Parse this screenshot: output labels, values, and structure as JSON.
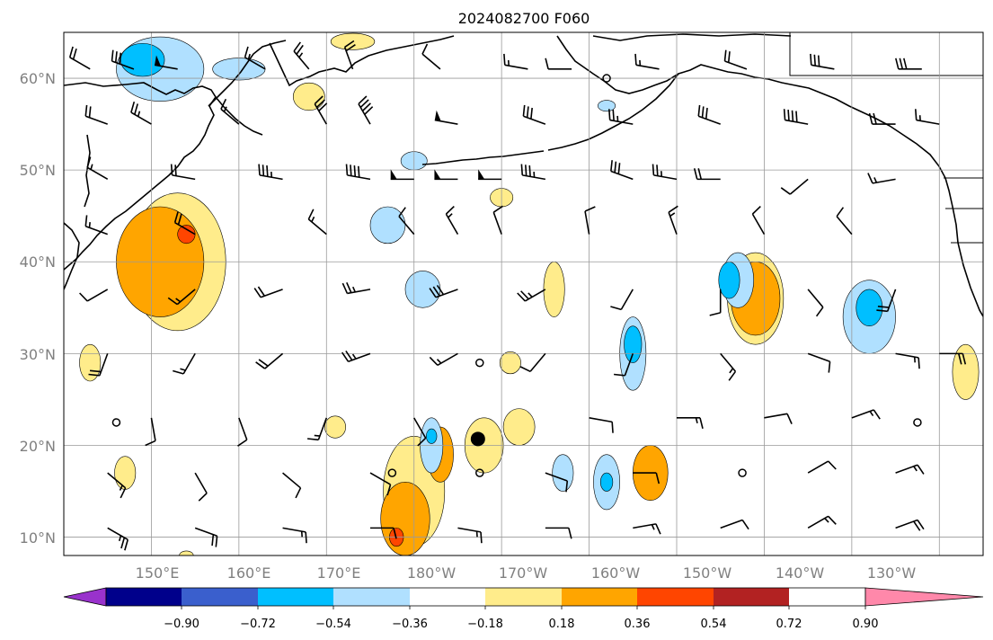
{
  "title": "2024082700 F060",
  "map": {
    "lon_labels": [
      "150°E",
      "160°E",
      "170°E",
      "180°W",
      "170°W",
      "160°W",
      "150°W",
      "140°W",
      "130°W"
    ],
    "lat_labels": [
      "10°N",
      "20°N",
      "30°N",
      "40°N",
      "50°N",
      "60°N"
    ],
    "lon_range": [
      140,
      245
    ],
    "lat_range": [
      8,
      65
    ],
    "gridlines": true
  },
  "colorbar": {
    "tick_labels": [
      "−0.90",
      "−0.72",
      "−0.54",
      "−0.36",
      "−0.18",
      "0.18",
      "0.36",
      "0.54",
      "0.72",
      "0.90"
    ],
    "levels": [
      -0.9,
      -0.72,
      -0.54,
      -0.36,
      -0.18,
      0.18,
      0.36,
      0.54,
      0.72,
      0.9
    ],
    "colors": [
      "#9932cc",
      "#00008b",
      "#3a5fcd",
      "#00bfff",
      "#b0e0ff",
      "#ffffff",
      "#ffec8b",
      "#ffa500",
      "#ff4500",
      "#b22222",
      "#ff88aa"
    ]
  },
  "fields": {
    "positive": [
      {
        "level": 0.18,
        "color": "#ffec8b",
        "regions": [
          {
            "c": [
              153,
              40
            ],
            "r": [
              5.5,
              7.5
            ]
          },
          {
            "c": [
              180,
              15
            ],
            "r": [
              3.5,
              6
            ]
          },
          {
            "c": [
              188,
              20
            ],
            "r": [
              2.2,
              3
            ]
          },
          {
            "c": [
              219,
              36
            ],
            "r": [
              3.2,
              5
            ]
          },
          {
            "c": [
              196,
              37
            ],
            "r": [
              1.2,
              3
            ]
          },
          {
            "c": [
              243,
              28
            ],
            "r": [
              1.5,
              3
            ]
          },
          {
            "c": [
              143,
              29
            ],
            "r": [
              1.2,
              2
            ]
          },
          {
            "c": [
              168,
              58
            ],
            "r": [
              1.8,
              1.5
            ]
          },
          {
            "c": [
              171,
              22
            ],
            "r": [
              1.2,
              1.2
            ]
          },
          {
            "c": [
              147,
              17
            ],
            "r": [
              1.2,
              1.8
            ]
          },
          {
            "c": [
              192,
              22
            ],
            "r": [
              1.8,
              2
            ]
          },
          {
            "c": [
              191,
              29
            ],
            "r": [
              1.2,
              1.2
            ]
          },
          {
            "c": [
              173,
              64
            ],
            "r": [
              2.5,
              0.9
            ]
          },
          {
            "c": [
              190,
              47
            ],
            "r": [
              1.3,
              1
            ]
          },
          {
            "c": [
              154,
              8
            ],
            "r": [
              0.8,
              0.5
            ]
          }
        ]
      },
      {
        "level": 0.36,
        "color": "#ffa500",
        "regions": [
          {
            "c": [
              151,
              40
            ],
            "r": [
              5,
              6
            ]
          },
          {
            "c": [
              179,
              12
            ],
            "r": [
              2.8,
              4
            ]
          },
          {
            "c": [
              183,
              19
            ],
            "r": [
              1.5,
              3
            ]
          },
          {
            "c": [
              219,
              36
            ],
            "r": [
              2.8,
              4
            ]
          },
          {
            "c": [
              207,
              17
            ],
            "r": [
              2,
              3
            ]
          }
        ]
      },
      {
        "level": 0.54,
        "color": "#ff4500",
        "regions": [
          {
            "c": [
              154,
              43
            ],
            "r": [
              1,
              1
            ]
          },
          {
            "c": [
              178,
              10
            ],
            "r": [
              0.8,
              1
            ]
          }
        ]
      }
    ],
    "negative": [
      {
        "level": -0.18,
        "color": "#b0e0ff",
        "regions": [
          {
            "c": [
              151,
              61
            ],
            "r": [
              5,
              3.5
            ]
          },
          {
            "c": [
              177,
              44
            ],
            "r": [
              2,
              2
            ]
          },
          {
            "c": [
              181,
              37
            ],
            "r": [
              2,
              2
            ]
          },
          {
            "c": [
              182,
              20
            ],
            "r": [
              1.3,
              3
            ]
          },
          {
            "c": [
              217,
              38
            ],
            "r": [
              1.8,
              3
            ]
          },
          {
            "c": [
              205,
              30
            ],
            "r": [
              1.5,
              4
            ]
          },
          {
            "c": [
              197,
              17
            ],
            "r": [
              1.2,
              2
            ]
          },
          {
            "c": [
              202,
              16
            ],
            "r": [
              1.5,
              3
            ]
          },
          {
            "c": [
              232,
              34
            ],
            "r": [
              3,
              4
            ]
          },
          {
            "c": [
              160,
              61
            ],
            "r": [
              3,
              1.2
            ]
          },
          {
            "c": [
              180,
              51
            ],
            "r": [
              1.5,
              1
            ]
          },
          {
            "c": [
              202,
              57
            ],
            "r": [
              1,
              0.6
            ]
          }
        ]
      },
      {
        "level": -0.36,
        "color": "#00bfff",
        "regions": [
          {
            "c": [
              149,
              62
            ],
            "r": [
              2.5,
              1.8
            ]
          },
          {
            "c": [
              216,
              38
            ],
            "r": [
              1.2,
              2
            ]
          },
          {
            "c": [
              205,
              31
            ],
            "r": [
              1,
              2
            ]
          },
          {
            "c": [
              232,
              35
            ],
            "r": [
              1.5,
              2
            ]
          },
          {
            "c": [
              202,
              16
            ],
            "r": [
              0.7,
              1
            ]
          },
          {
            "c": [
              182,
              21
            ],
            "r": [
              0.6,
              0.8
            ]
          }
        ]
      }
    ]
  },
  "markers": [
    {
      "lon": 187.3,
      "lat": 20.7,
      "kind": "large-dot"
    },
    {
      "lon": 146,
      "lat": 22.5,
      "kind": "calm-circle"
    },
    {
      "lon": 187.5,
      "lat": 29,
      "kind": "calm-circle"
    },
    {
      "lon": 177.5,
      "lat": 17,
      "kind": "calm-circle"
    },
    {
      "lon": 187.5,
      "lat": 17,
      "kind": "calm-circle"
    },
    {
      "lon": 217.5,
      "lat": 17,
      "kind": "calm-circle"
    },
    {
      "lon": 237.5,
      "lat": 22.5,
      "kind": "calm-circle"
    },
    {
      "lon": 202,
      "lat": 60,
      "kind": "calm-circle"
    }
  ],
  "barbs": [
    {
      "lon": 143,
      "lat": 61,
      "dir": 300,
      "spd": 20
    },
    {
      "lon": 148,
      "lat": 61,
      "dir": 290,
      "spd": 30
    },
    {
      "lon": 153,
      "lat": 61,
      "dir": 280,
      "spd": 50
    },
    {
      "lon": 163,
      "lat": 61,
      "dir": 300,
      "spd": 15
    },
    {
      "lon": 168,
      "lat": 61,
      "dir": 320,
      "spd": 25
    },
    {
      "lon": 173,
      "lat": 61,
      "dir": 340,
      "spd": 20
    },
    {
      "lon": 183,
      "lat": 61,
      "dir": 310,
      "spd": 10
    },
    {
      "lon": 193,
      "lat": 61,
      "dir": 280,
      "spd": 15
    },
    {
      "lon": 198,
      "lat": 61,
      "dir": 270,
      "spd": 10
    },
    {
      "lon": 208,
      "lat": 61,
      "dir": 280,
      "spd": 15
    },
    {
      "lon": 218,
      "lat": 61,
      "dir": 290,
      "spd": 20
    },
    {
      "lon": 228,
      "lat": 61,
      "dir": 280,
      "spd": 30
    },
    {
      "lon": 238,
      "lat": 61,
      "dir": 270,
      "spd": 30
    },
    {
      "lon": 145,
      "lat": 55,
      "dir": 290,
      "spd": 20
    },
    {
      "lon": 150,
      "lat": 55,
      "dir": 300,
      "spd": 25
    },
    {
      "lon": 160,
      "lat": 55,
      "dir": 310,
      "spd": 15
    },
    {
      "lon": 170,
      "lat": 55,
      "dir": 330,
      "spd": 30
    },
    {
      "lon": 175,
      "lat": 55,
      "dir": 330,
      "spd": 40
    },
    {
      "lon": 185,
      "lat": 55,
      "dir": 280,
      "spd": 50
    },
    {
      "lon": 195,
      "lat": 55,
      "dir": 290,
      "spd": 30
    },
    {
      "lon": 205,
      "lat": 55,
      "dir": 280,
      "spd": 25
    },
    {
      "lon": 215,
      "lat": 55,
      "dir": 290,
      "spd": 30
    },
    {
      "lon": 225,
      "lat": 55,
      "dir": 280,
      "spd": 40
    },
    {
      "lon": 235,
      "lat": 55,
      "dir": 270,
      "spd": 20
    },
    {
      "lon": 240,
      "lat": 55,
      "dir": 280,
      "spd": 15
    },
    {
      "lon": 145,
      "lat": 49,
      "dir": 300,
      "spd": 15
    },
    {
      "lon": 155,
      "lat": 49,
      "dir": 280,
      "spd": 20
    },
    {
      "lon": 165,
      "lat": 49,
      "dir": 280,
      "spd": 35
    },
    {
      "lon": 175,
      "lat": 49,
      "dir": 280,
      "spd": 40
    },
    {
      "lon": 180,
      "lat": 49,
      "dir": 270,
      "spd": 50
    },
    {
      "lon": 185,
      "lat": 49,
      "dir": 270,
      "spd": 50
    },
    {
      "lon": 190,
      "lat": 49,
      "dir": 270,
      "spd": 50
    },
    {
      "lon": 195,
      "lat": 49,
      "dir": 280,
      "spd": 35
    },
    {
      "lon": 205,
      "lat": 49,
      "dir": 290,
      "spd": 30
    },
    {
      "lon": 210,
      "lat": 49,
      "dir": 280,
      "spd": 25
    },
    {
      "lon": 215,
      "lat": 49,
      "dir": 270,
      "spd": 20
    },
    {
      "lon": 225,
      "lat": 49,
      "dir": 230,
      "spd": 10
    },
    {
      "lon": 235,
      "lat": 49,
      "dir": 260,
      "spd": 15
    },
    {
      "lon": 145,
      "lat": 43,
      "dir": 290,
      "spd": 15
    },
    {
      "lon": 155,
      "lat": 43,
      "dir": 300,
      "spd": 20
    },
    {
      "lon": 170,
      "lat": 43,
      "dir": 310,
      "spd": 15
    },
    {
      "lon": 180,
      "lat": 43,
      "dir": 320,
      "spd": 10
    },
    {
      "lon": 185,
      "lat": 43,
      "dir": 330,
      "spd": 15
    },
    {
      "lon": 190,
      "lat": 43,
      "dir": 340,
      "spd": 10
    },
    {
      "lon": 200,
      "lat": 43,
      "dir": 350,
      "spd": 10
    },
    {
      "lon": 210,
      "lat": 43,
      "dir": 340,
      "spd": 15
    },
    {
      "lon": 220,
      "lat": 43,
      "dir": 330,
      "spd": 10
    },
    {
      "lon": 230,
      "lat": 43,
      "dir": 320,
      "spd": 10
    },
    {
      "lon": 145,
      "lat": 37,
      "dir": 240,
      "spd": 10
    },
    {
      "lon": 155,
      "lat": 37,
      "dir": 230,
      "spd": 15
    },
    {
      "lon": 165,
      "lat": 37,
      "dir": 250,
      "spd": 20
    },
    {
      "lon": 175,
      "lat": 37,
      "dir": 260,
      "spd": 25
    },
    {
      "lon": 185,
      "lat": 37,
      "dir": 250,
      "spd": 30
    },
    {
      "lon": 195,
      "lat": 37,
      "dir": 240,
      "spd": 25
    },
    {
      "lon": 205,
      "lat": 37,
      "dir": 210,
      "spd": 10
    },
    {
      "lon": 215,
      "lat": 37,
      "dir": 180,
      "spd": 10
    },
    {
      "lon": 225,
      "lat": 37,
      "dir": 140,
      "spd": 10
    },
    {
      "lon": 235,
      "lat": 37,
      "dir": 200,
      "spd": 20
    },
    {
      "lon": 145,
      "lat": 30,
      "dir": 200,
      "spd": 20
    },
    {
      "lon": 155,
      "lat": 30,
      "dir": 210,
      "spd": 15
    },
    {
      "lon": 165,
      "lat": 30,
      "dir": 230,
      "spd": 20
    },
    {
      "lon": 175,
      "lat": 30,
      "dir": 250,
      "spd": 25
    },
    {
      "lon": 185,
      "lat": 30,
      "dir": 240,
      "spd": 15
    },
    {
      "lon": 195,
      "lat": 30,
      "dir": 220,
      "spd": 10
    },
    {
      "lon": 205,
      "lat": 30,
      "dir": 200,
      "spd": 10
    },
    {
      "lon": 215,
      "lat": 30,
      "dir": 140,
      "spd": 15
    },
    {
      "lon": 225,
      "lat": 30,
      "dir": 110,
      "spd": 10
    },
    {
      "lon": 235,
      "lat": 30,
      "dir": 100,
      "spd": 15
    },
    {
      "lon": 240,
      "lat": 30,
      "dir": 90,
      "spd": 20
    },
    {
      "lon": 150,
      "lat": 23,
      "dir": 170,
      "spd": 10
    },
    {
      "lon": 160,
      "lat": 23,
      "dir": 160,
      "spd": 10
    },
    {
      "lon": 170,
      "lat": 23,
      "dir": 200,
      "spd": 15
    },
    {
      "lon": 180,
      "lat": 23,
      "dir": 150,
      "spd": 10
    },
    {
      "lon": 200,
      "lat": 23,
      "dir": 100,
      "spd": 10
    },
    {
      "lon": 210,
      "lat": 23,
      "dir": 90,
      "spd": 15
    },
    {
      "lon": 220,
      "lat": 23,
      "dir": 80,
      "spd": 10
    },
    {
      "lon": 230,
      "lat": 23,
      "dir": 70,
      "spd": 15
    },
    {
      "lon": 145,
      "lat": 17,
      "dir": 130,
      "spd": 15
    },
    {
      "lon": 155,
      "lat": 17,
      "dir": 150,
      "spd": 10
    },
    {
      "lon": 165,
      "lat": 17,
      "dir": 130,
      "spd": 10
    },
    {
      "lon": 175,
      "lat": 17,
      "dir": 120,
      "spd": 10
    },
    {
      "lon": 195,
      "lat": 17,
      "dir": 110,
      "spd": 10
    },
    {
      "lon": 205,
      "lat": 17,
      "dir": 90,
      "spd": 10
    },
    {
      "lon": 225,
      "lat": 17,
      "dir": 60,
      "spd": 10
    },
    {
      "lon": 235,
      "lat": 17,
      "dir": 70,
      "spd": 15
    },
    {
      "lon": 145,
      "lat": 11,
      "dir": 120,
      "spd": 25
    },
    {
      "lon": 155,
      "lat": 11,
      "dir": 110,
      "spd": 20
    },
    {
      "lon": 165,
      "lat": 11,
      "dir": 100,
      "spd": 15
    },
    {
      "lon": 175,
      "lat": 11,
      "dir": 90,
      "spd": 10
    },
    {
      "lon": 185,
      "lat": 11,
      "dir": 100,
      "spd": 15
    },
    {
      "lon": 195,
      "lat": 11,
      "dir": 90,
      "spd": 10
    },
    {
      "lon": 205,
      "lat": 11,
      "dir": 80,
      "spd": 15
    },
    {
      "lon": 215,
      "lat": 11,
      "dir": 70,
      "spd": 10
    },
    {
      "lon": 225,
      "lat": 11,
      "dir": 60,
      "spd": 15
    },
    {
      "lon": 235,
      "lat": 11,
      "dir": 70,
      "spd": 20
    }
  ]
}
